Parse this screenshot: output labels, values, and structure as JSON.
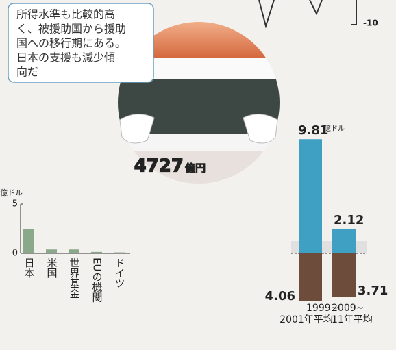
{
  "callout": {
    "lines": [
      "所得水準も比較的高",
      "く、被援助国から援助",
      "国への移行期にある。",
      "日本の支援も減少傾",
      "向だ"
    ]
  },
  "fragment": {
    "label": "-10"
  },
  "center_label": {
    "value": 4727,
    "unit": "億円"
  },
  "chart_data": [
    {
      "type": "bar",
      "y_unit": "億ドル",
      "categories": [
        "日本",
        "米国",
        "世界基金",
        "EUの機関",
        "ドイツ"
      ],
      "values": [
        2.5,
        0.4,
        0.4,
        0.15,
        0.1
      ],
      "color": "#8aa88a",
      "ylim": [
        0,
        5
      ],
      "yticks": [
        0,
        5
      ]
    },
    {
      "type": "diverging",
      "unit": "億ドル",
      "categories": [
        [
          "1999~",
          "2001年平均"
        ],
        [
          "2009~",
          "11年平均"
        ]
      ],
      "series": [
        {
          "color": "#3fa0c4",
          "values": [
            9.81,
            2.12
          ]
        },
        {
          "color": "#6e4c3c",
          "values": [
            4.06,
            3.71
          ]
        }
      ],
      "ylim": [
        -5,
        10
      ]
    }
  ]
}
